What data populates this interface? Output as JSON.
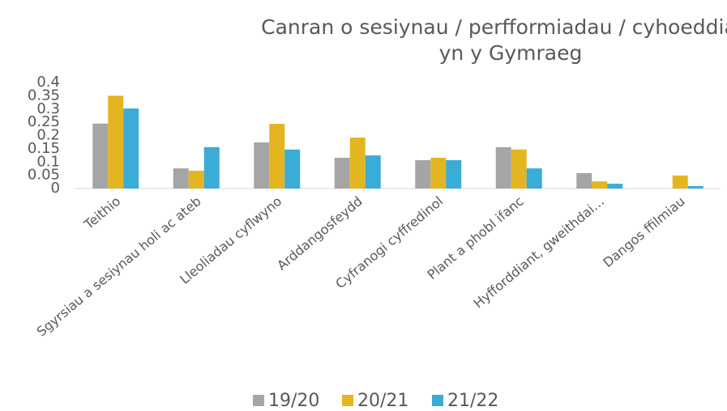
{
  "chart_data": {
    "type": "bar",
    "title": [
      "Canran o sesiynau / perfformiadau / cyhoeddiadau",
      "yn y Gymraeg"
    ],
    "categories": [
      "Teithio",
      "Sgyrsiau a sesiynau holi ac ateb",
      "Lleoliadau cyflwyno",
      "Arddangosfeydd",
      "Cyfranogi cyffredinol",
      "Plant a phobl ifanc",
      "Hyfforddiant, gweithdai…",
      "Dangos ffilmiau"
    ],
    "series": [
      {
        "name": "19/20",
        "color": "#a5a5a5",
        "values": [
          0.245,
          0.076,
          0.174,
          0.116,
          0.107,
          0.156,
          0.058,
          0
        ]
      },
      {
        "name": "20/21",
        "color": "#e3b521",
        "values": [
          0.35,
          0.067,
          0.244,
          0.192,
          0.116,
          0.147,
          0.027,
          0.049
        ]
      },
      {
        "name": "21/22",
        "color": "#3aacd6",
        "values": [
          0.302,
          0.156,
          0.147,
          0.125,
          0.107,
          0.076,
          0.018,
          0.009
        ]
      }
    ],
    "ylim": [
      0,
      0.4
    ],
    "yticks": [
      0,
      0.05,
      0.1,
      0.15,
      0.2,
      0.25,
      0.3,
      0.35,
      0.4
    ],
    "grid": false,
    "legend": "bottom"
  }
}
